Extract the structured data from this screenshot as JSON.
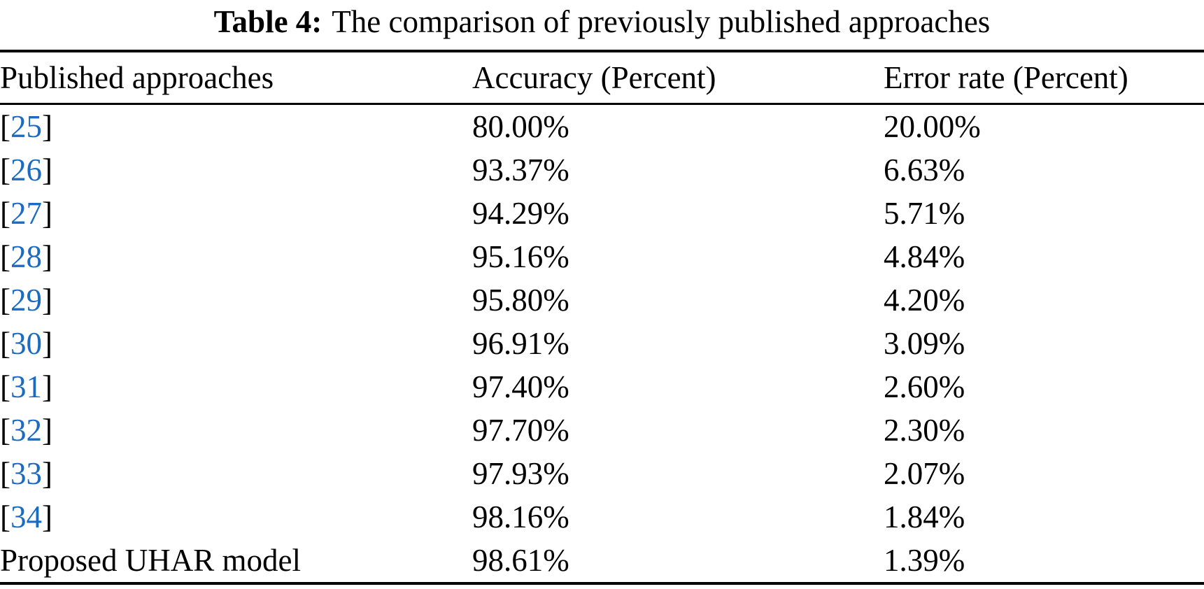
{
  "page": {
    "background_color": "#ffffff",
    "text_color": "#000000",
    "citation_link_color": "#1b6bc0"
  },
  "table": {
    "caption": {
      "label": "Table 4:",
      "text": "The comparison of previously published approaches"
    },
    "columns": [
      "Published approaches",
      "Accuracy (Percent)",
      "Error rate (Percent)"
    ],
    "citation_bracket_open": "[",
    "citation_bracket_close": "]",
    "rows": [
      {
        "ref": "25",
        "accuracy": "80.00%",
        "error_rate": "20.00%"
      },
      {
        "ref": "26",
        "accuracy": "93.37%",
        "error_rate": "6.63%"
      },
      {
        "ref": "27",
        "accuracy": "94.29%",
        "error_rate": "5.71%"
      },
      {
        "ref": "28",
        "accuracy": "95.16%",
        "error_rate": "4.84%"
      },
      {
        "ref": "29",
        "accuracy": "95.80%",
        "error_rate": "4.20%"
      },
      {
        "ref": "30",
        "accuracy": "96.91%",
        "error_rate": "3.09%"
      },
      {
        "ref": "31",
        "accuracy": "97.40%",
        "error_rate": "2.60%"
      },
      {
        "ref": "32",
        "accuracy": "97.70%",
        "error_rate": "2.30%"
      },
      {
        "ref": "33",
        "accuracy": "97.93%",
        "error_rate": "2.07%"
      },
      {
        "ref": "34",
        "accuracy": "98.16%",
        "error_rate": "1.84%"
      },
      {
        "label": "Proposed UHAR model",
        "accuracy": "98.61%",
        "error_rate": "1.39%"
      }
    ]
  },
  "chart_data": {
    "type": "table",
    "title": "Table 4: The comparison of previously published approaches",
    "columns": [
      "Published approaches",
      "Accuracy (Percent)",
      "Error rate (Percent)"
    ],
    "categories": [
      "[25]",
      "[26]",
      "[27]",
      "[28]",
      "[29]",
      "[30]",
      "[31]",
      "[32]",
      "[33]",
      "[34]",
      "Proposed UHAR model"
    ],
    "series": [
      {
        "name": "Accuracy (Percent)",
        "values": [
          80.0,
          93.37,
          94.29,
          95.16,
          95.8,
          96.91,
          97.4,
          97.7,
          97.93,
          98.16,
          98.61
        ]
      },
      {
        "name": "Error rate (Percent)",
        "values": [
          20.0,
          6.63,
          5.71,
          4.84,
          4.2,
          3.09,
          2.6,
          2.3,
          2.07,
          1.84,
          1.39
        ]
      }
    ]
  }
}
